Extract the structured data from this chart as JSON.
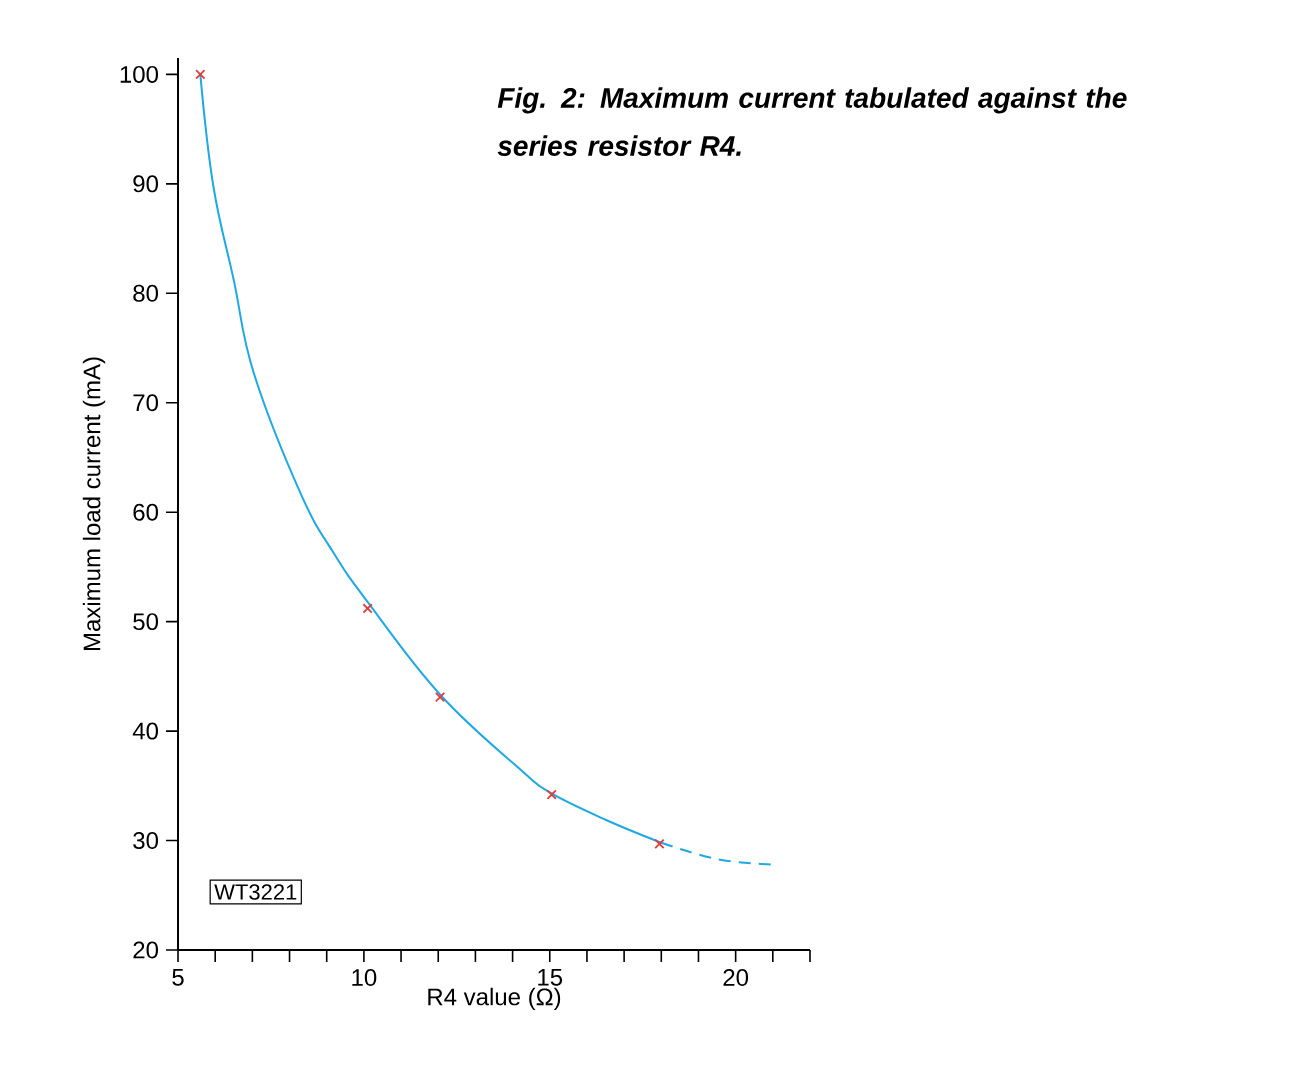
{
  "chart_data": {
    "type": "line",
    "title": "Fig. 2: Maximum current tabulated against the series resistor R4.",
    "xlabel": "R4 value (Ω)",
    "ylabel": "Maximum load current (mA)",
    "annotations": [
      "WT3221"
    ],
    "xlim": [
      5,
      22
    ],
    "ylim": [
      20,
      101.5
    ],
    "xticks": [
      5,
      {
        "value": 6,
        "label": null
      },
      {
        "value": 7,
        "label": null
      },
      {
        "value": 8,
        "label": null
      },
      {
        "value": 9,
        "label": null
      },
      10,
      {
        "value": 11,
        "label": null
      },
      {
        "value": 12,
        "label": null
      },
      {
        "value": 13,
        "label": null
      },
      {
        "value": 14,
        "label": null
      },
      15,
      {
        "value": 16,
        "label": null
      },
      {
        "value": 17,
        "label": null
      },
      {
        "value": 18,
        "label": null
      },
      {
        "value": 19,
        "label": null
      },
      20,
      {
        "value": 21,
        "label": null
      },
      {
        "value": 22,
        "label": null
      }
    ],
    "yticks": [
      20,
      30,
      40,
      50,
      60,
      70,
      80,
      90,
      100
    ],
    "series": [
      {
        "color": "#1ea8e4",
        "line_style": "solid",
        "x": [
          5.6,
          5.95,
          6.5,
          7.04,
          8.3,
          9.2,
          10.1,
          12.06,
          14.24,
          15.05,
          16.5,
          18
        ],
        "values": [
          100,
          89.8,
          81.2,
          72.7,
          61.7,
          56.2,
          51.8,
          43.3,
          36.4,
          34.3,
          31.9,
          29.8
        ]
      },
      {
        "color": "#1ea8e4",
        "line_style": "dashed",
        "x": [
          18,
          19.5,
          21
        ],
        "values": [
          29.8,
          28.3,
          27.8
        ]
      },
      {
        "type": "scatter",
        "marker": "cross",
        "color": "#e03c3c",
        "x": [
          5.6,
          10.1,
          12.05,
          15.05,
          17.95
        ],
        "values": [
          100,
          51.2,
          43.1,
          34.2,
          29.7
        ]
      }
    ]
  }
}
